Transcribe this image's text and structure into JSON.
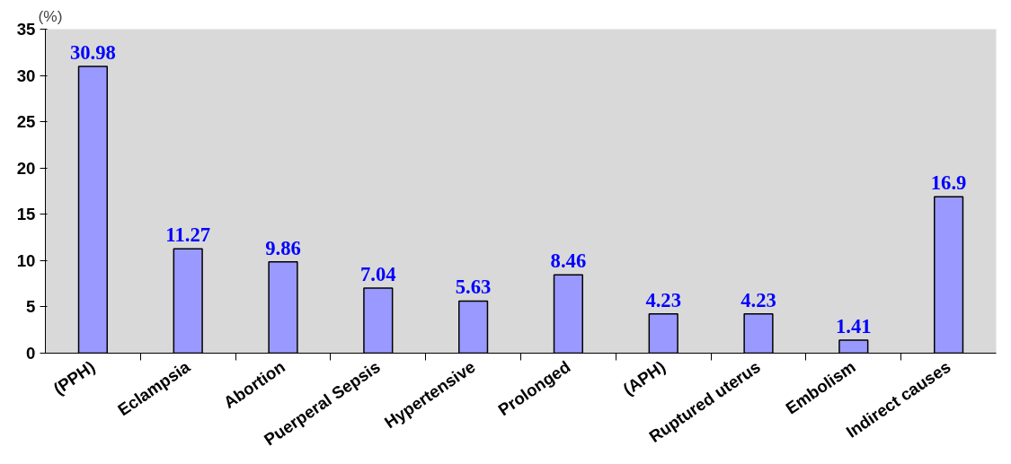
{
  "chart_data": {
    "type": "bar",
    "ylabel": "(%)",
    "categories": [
      "(PPH)",
      "Eclampsia",
      "Abortion",
      "Puerperal Sepsis",
      "Hypertensive",
      "Prolonged",
      "(APH)",
      "Ruptured uterus",
      "Embolism",
      "Indirect causes"
    ],
    "values": [
      30.98,
      11.27,
      9.86,
      7.04,
      5.63,
      8.46,
      4.23,
      4.23,
      1.41,
      16.9
    ],
    "color": "#9999ff",
    "ylim": [
      0,
      35
    ],
    "yticks": [
      0,
      5,
      10,
      15,
      20,
      25,
      30,
      35
    ],
    "grid": false,
    "data_labels": true
  }
}
